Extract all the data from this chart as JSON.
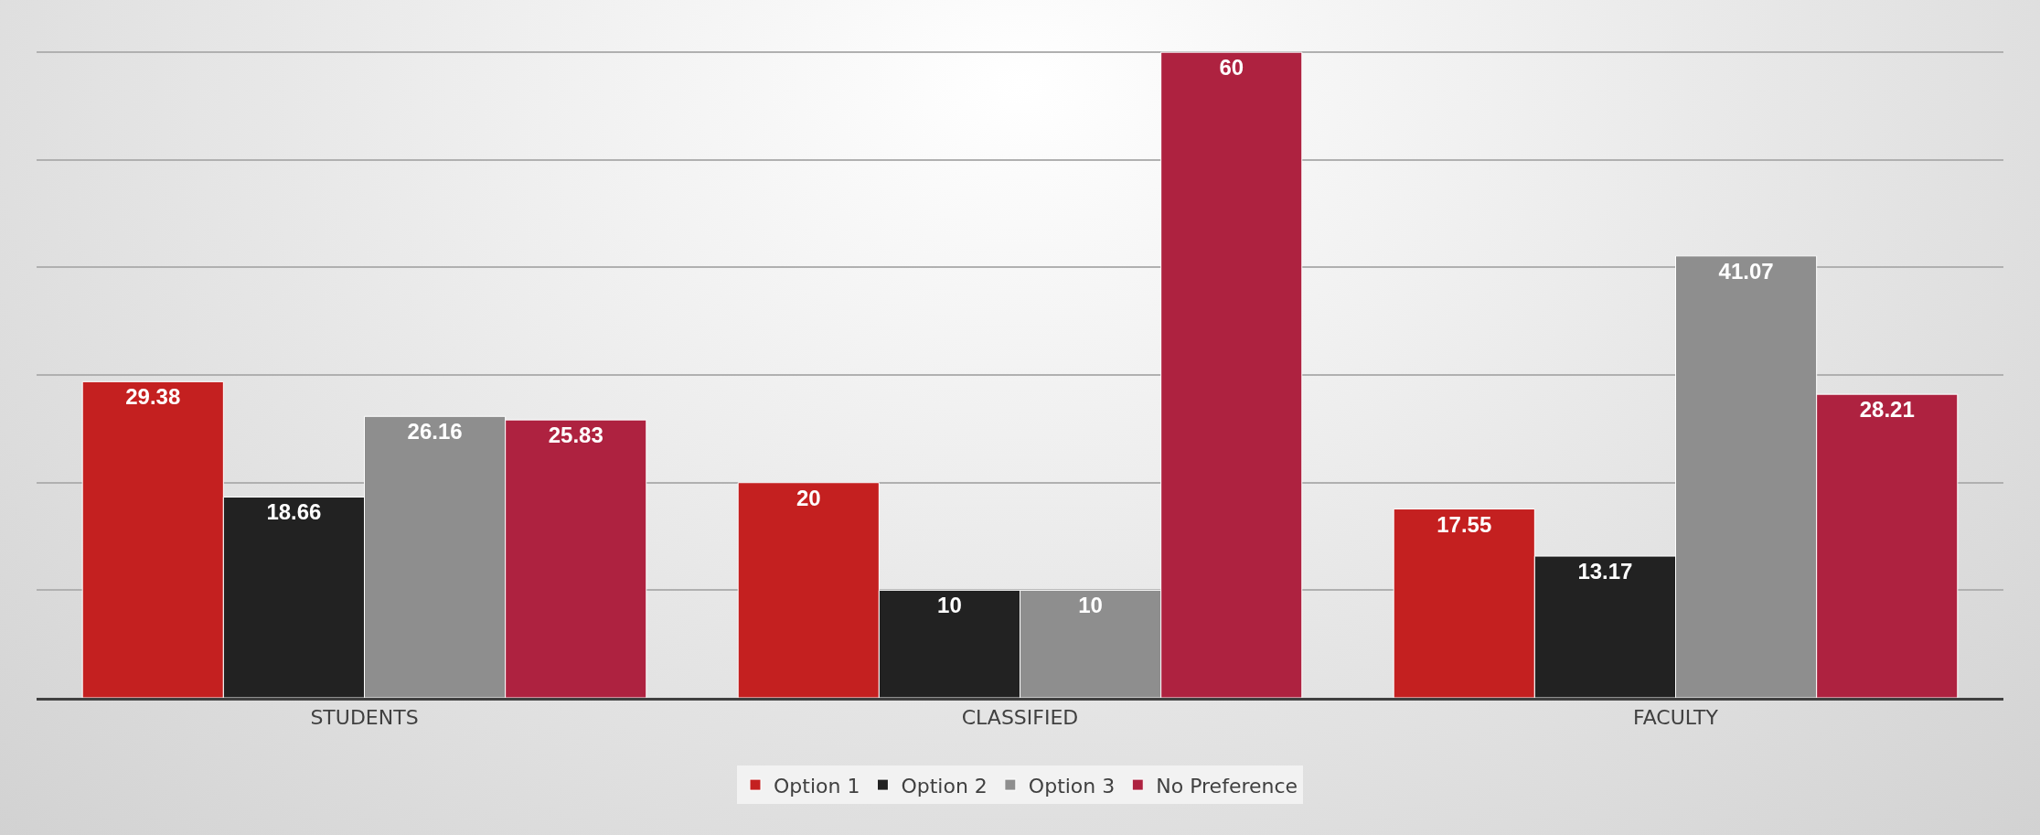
{
  "chart_data": {
    "type": "bar",
    "categories": [
      "STUDENTS",
      "CLASSIFIED",
      "FACULTY"
    ],
    "series": [
      {
        "name": "Option 1",
        "color": "#c42020",
        "values": [
          29.38,
          20,
          17.55
        ]
      },
      {
        "name": "Option 2",
        "color": "#222222",
        "values": [
          18.66,
          10,
          13.17
        ]
      },
      {
        "name": "Option 3",
        "color": "#8e8e8e",
        "values": [
          26.16,
          10,
          41.07
        ]
      },
      {
        "name": "No Preference",
        "color": "#ae2240",
        "values": [
          25.83,
          60,
          28.21
        ]
      }
    ],
    "yticks": [
      {
        "value": 0,
        "label": null
      },
      {
        "value": 10,
        "label": null
      },
      {
        "value": 20,
        "label": null
      },
      {
        "value": 30,
        "label": null
      },
      {
        "value": 40,
        "label": null
      },
      {
        "value": 50,
        "label": null
      },
      {
        "value": 60,
        "label": null
      }
    ],
    "tick_labels": "x",
    "grid": "y",
    "legend": "bottom",
    "data_labels": true
  }
}
